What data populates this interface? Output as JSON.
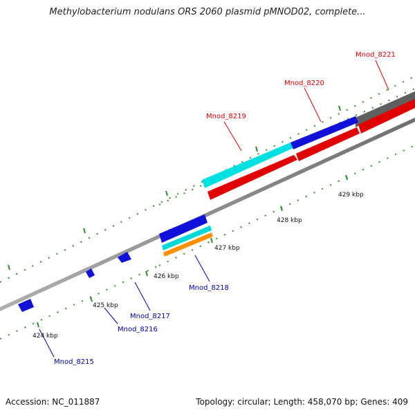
{
  "title": "Methylobacterium nodulans ORS 2060 plasmid pMNOD02, complete...",
  "footer": {
    "accession": "Accession: NC_011887",
    "summary": "Topology: circular; Length: 458,070 bp; Genes: 409"
  },
  "scale_labels": [
    "424 kbp",
    "425 kbp",
    "426 kbp",
    "427 kbp",
    "428 kbp",
    "429 kbp"
  ],
  "colors": {
    "backbone": "#8a8a8a",
    "forward_label": "#dd0000",
    "reverse_label": "#0000aa",
    "tick": "#2e8b2e"
  },
  "genes": {
    "forward": [
      "Mnod_8219",
      "Mnod_8220",
      "Mnod_8221"
    ],
    "reverse": [
      "Mnod_8215",
      "Mnod_8216",
      "Mnod_8217",
      "Mnod_8218"
    ]
  }
}
